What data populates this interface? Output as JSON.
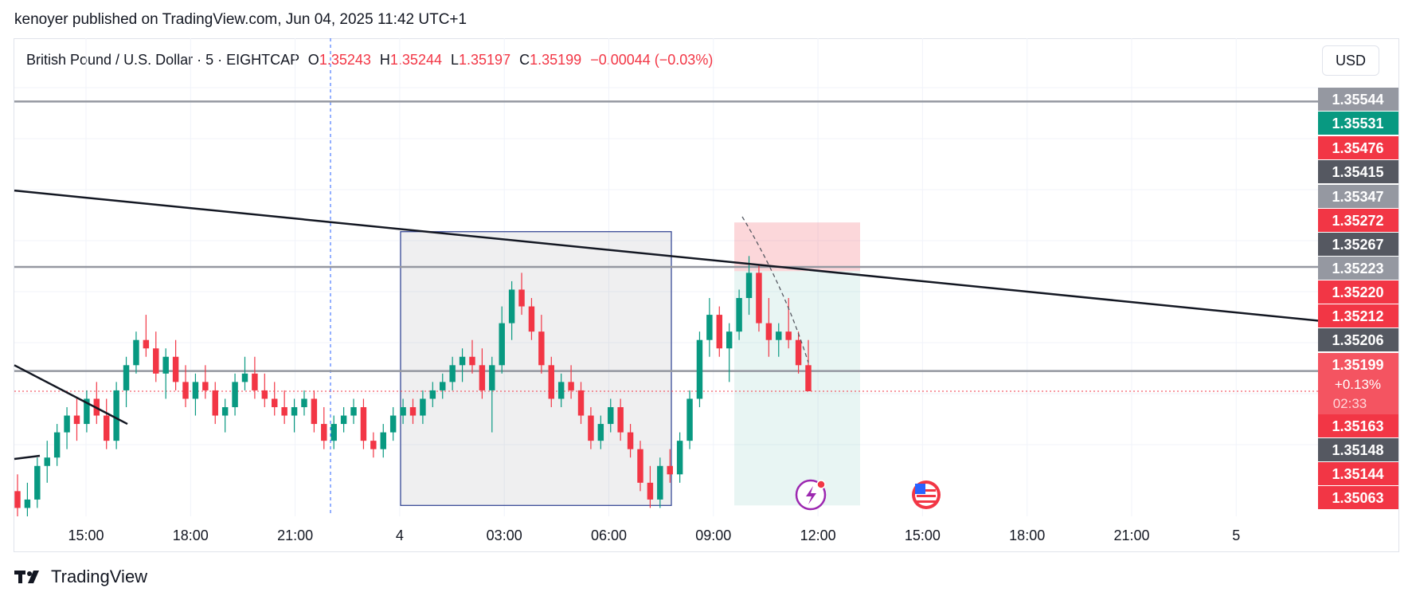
{
  "publisher_line": "kenoyer published on TradingView.com, Jun 04, 2025 11:42 UTC+1",
  "header": {
    "symbol": "British Pound / U.S. Dollar · 5 · EIGHTCAP",
    "open_label": "O",
    "open": "1.35243",
    "high_label": "H",
    "high": "1.35244",
    "low_label": "L",
    "low": "1.35197",
    "close_label": "C",
    "close": "1.35199",
    "change": "−0.00044 (−0.03%)"
  },
  "currency_button": "USD",
  "brand": "TradingView",
  "colors": {
    "up": "#089981",
    "down": "#f23645",
    "accent_blue": "#2962ff",
    "label_gray": "#9598a1",
    "label_dark": "#555861",
    "label_red": "#f23645",
    "label_green": "#089981"
  },
  "chart_data": {
    "type": "candlestick",
    "ylim": [
      1.3505,
      1.3557
    ],
    "x_ticks": [
      "15:00",
      "18:00",
      "21:00",
      "4",
      "03:00",
      "06:00",
      "09:00",
      "12:00",
      "15:00",
      "18:00",
      "21:00",
      "5"
    ],
    "price_labels": [
      {
        "text": "1.35544",
        "kind": "gray"
      },
      {
        "text": "1.35531",
        "kind": "green"
      },
      {
        "text": "1.35476",
        "kind": "red"
      },
      {
        "text": "1.35415",
        "kind": "dark"
      },
      {
        "text": "1.35347",
        "kind": "gray"
      },
      {
        "text": "1.35272",
        "kind": "red"
      },
      {
        "text": "1.35267",
        "kind": "dark"
      },
      {
        "text": "1.35223",
        "kind": "gray"
      },
      {
        "text": "1.35220",
        "kind": "red"
      },
      {
        "text": "1.35212",
        "kind": "red"
      },
      {
        "text": "1.35206",
        "kind": "dark"
      },
      {
        "text": "1.35163",
        "kind": "red"
      },
      {
        "text": "1.35148",
        "kind": "dark"
      },
      {
        "text": "1.35144",
        "kind": "red"
      },
      {
        "text": "1.35063",
        "kind": "red"
      }
    ],
    "last_price": {
      "price": "1.35199",
      "change": "+0.13%",
      "countdown": "02:33"
    },
    "horizontal_levels": [
      1.35544,
      1.35347,
      1.35223
    ],
    "trendline_desc": [
      {
        "from": 1.35438,
        "to": 1.35283
      }
    ],
    "trendline_short": [
      {
        "from": 1.3523,
        "to": 1.3516
      }
    ],
    "range_box": {
      "top": 1.35389,
      "bottom": 1.35063
    },
    "position": {
      "stop": 1.354,
      "entry": 1.35342,
      "target": 1.35063
    },
    "candles": [
      [
        1.3508,
        1.351,
        1.3505,
        1.3506
      ],
      [
        1.3506,
        1.3509,
        1.3505,
        1.3507
      ],
      [
        1.3507,
        1.3512,
        1.3506,
        1.3511
      ],
      [
        1.3511,
        1.3514,
        1.3509,
        1.3512
      ],
      [
        1.3512,
        1.3516,
        1.3511,
        1.3515
      ],
      [
        1.3515,
        1.3518,
        1.3513,
        1.3517
      ],
      [
        1.3517,
        1.3519,
        1.3514,
        1.3516
      ],
      [
        1.3516,
        1.352,
        1.3515,
        1.3519
      ],
      [
        1.3519,
        1.3521,
        1.3516,
        1.3517
      ],
      [
        1.3517,
        1.3519,
        1.3513,
        1.3514
      ],
      [
        1.3514,
        1.3521,
        1.3513,
        1.352
      ],
      [
        1.352,
        1.3524,
        1.3518,
        1.3523
      ],
      [
        1.3523,
        1.3527,
        1.3522,
        1.3526
      ],
      [
        1.3526,
        1.3529,
        1.3524,
        1.3525
      ],
      [
        1.3525,
        1.3527,
        1.3521,
        1.3522
      ],
      [
        1.3522,
        1.3525,
        1.3519,
        1.3524
      ],
      [
        1.3524,
        1.3526,
        1.352,
        1.3521
      ],
      [
        1.3521,
        1.3523,
        1.3518,
        1.3519
      ],
      [
        1.3519,
        1.3522,
        1.3517,
        1.3521
      ],
      [
        1.3521,
        1.3523,
        1.3519,
        1.352
      ],
      [
        1.352,
        1.3521,
        1.3516,
        1.3517
      ],
      [
        1.3517,
        1.3519,
        1.3515,
        1.3518
      ],
      [
        1.3518,
        1.3522,
        1.3517,
        1.3521
      ],
      [
        1.3521,
        1.3524,
        1.352,
        1.3522
      ],
      [
        1.3522,
        1.3524,
        1.3519,
        1.352
      ],
      [
        1.352,
        1.3522,
        1.3518,
        1.3519
      ],
      [
        1.3519,
        1.3521,
        1.3517,
        1.3518
      ],
      [
        1.3518,
        1.352,
        1.3516,
        1.3517
      ],
      [
        1.3517,
        1.3519,
        1.3515,
        1.3518
      ],
      [
        1.3518,
        1.352,
        1.3517,
        1.3519
      ],
      [
        1.3519,
        1.352,
        1.3515,
        1.3516
      ],
      [
        1.3516,
        1.3518,
        1.3513,
        1.3514
      ],
      [
        1.3514,
        1.3517,
        1.3513,
        1.3516
      ],
      [
        1.3516,
        1.3518,
        1.3515,
        1.3517
      ],
      [
        1.3517,
        1.3519,
        1.3516,
        1.3518
      ],
      [
        1.3518,
        1.3519,
        1.3513,
        1.3514
      ],
      [
        1.3514,
        1.3515,
        1.3512,
        1.3513
      ],
      [
        1.3513,
        1.3516,
        1.3512,
        1.3515
      ],
      [
        1.3515,
        1.3518,
        1.3514,
        1.3517
      ],
      [
        1.3517,
        1.3519,
        1.3516,
        1.3518
      ],
      [
        1.3518,
        1.3519,
        1.3516,
        1.3517
      ],
      [
        1.3517,
        1.352,
        1.3516,
        1.3519
      ],
      [
        1.3519,
        1.3521,
        1.3518,
        1.352
      ],
      [
        1.352,
        1.3522,
        1.3519,
        1.3521
      ],
      [
        1.3521,
        1.3524,
        1.352,
        1.3523
      ],
      [
        1.3523,
        1.3525,
        1.3521,
        1.3524
      ],
      [
        1.3524,
        1.3526,
        1.3522,
        1.3523
      ],
      [
        1.3523,
        1.3525,
        1.3519,
        1.352
      ],
      [
        1.352,
        1.3524,
        1.3515,
        1.3523
      ],
      [
        1.3523,
        1.353,
        1.3522,
        1.3528
      ],
      [
        1.3528,
        1.3533,
        1.3526,
        1.3532
      ],
      [
        1.3532,
        1.3534,
        1.3529,
        1.353
      ],
      [
        1.353,
        1.3531,
        1.3526,
        1.3527
      ],
      [
        1.3527,
        1.3529,
        1.3522,
        1.3523
      ],
      [
        1.3523,
        1.3524,
        1.3518,
        1.3519
      ],
      [
        1.3519,
        1.3522,
        1.3518,
        1.3521
      ],
      [
        1.3521,
        1.3523,
        1.3519,
        1.352
      ],
      [
        1.352,
        1.3521,
        1.3516,
        1.3517
      ],
      [
        1.3517,
        1.3518,
        1.3513,
        1.3514
      ],
      [
        1.3514,
        1.3517,
        1.3513,
        1.3516
      ],
      [
        1.3516,
        1.3519,
        1.3515,
        1.3518
      ],
      [
        1.3518,
        1.3519,
        1.3514,
        1.3515
      ],
      [
        1.3515,
        1.3516,
        1.3512,
        1.3513
      ],
      [
        1.3513,
        1.3514,
        1.3508,
        1.3509
      ],
      [
        1.3509,
        1.3511,
        1.3506,
        1.3507
      ],
      [
        1.3507,
        1.3512,
        1.3506,
        1.3511
      ],
      [
        1.3511,
        1.3513,
        1.3509,
        1.351
      ],
      [
        1.351,
        1.3515,
        1.3509,
        1.3514
      ],
      [
        1.3514,
        1.352,
        1.3513,
        1.3519
      ],
      [
        1.3519,
        1.3527,
        1.3518,
        1.3526
      ],
      [
        1.3526,
        1.3531,
        1.3524,
        1.3529
      ],
      [
        1.3529,
        1.353,
        1.3524,
        1.3525
      ],
      [
        1.3525,
        1.3528,
        1.3521,
        1.3527
      ],
      [
        1.3527,
        1.3532,
        1.3526,
        1.3531
      ],
      [
        1.3531,
        1.3536,
        1.3529,
        1.3534
      ],
      [
        1.3534,
        1.3535,
        1.3527,
        1.3528
      ],
      [
        1.3528,
        1.3531,
        1.3524,
        1.3526
      ],
      [
        1.3526,
        1.3528,
        1.3524,
        1.3527
      ],
      [
        1.3527,
        1.3531,
        1.3525,
        1.3526
      ],
      [
        1.3526,
        1.3527,
        1.3522,
        1.3523
      ],
      [
        1.3523,
        1.3526,
        1.352,
        1.35199
      ]
    ]
  }
}
